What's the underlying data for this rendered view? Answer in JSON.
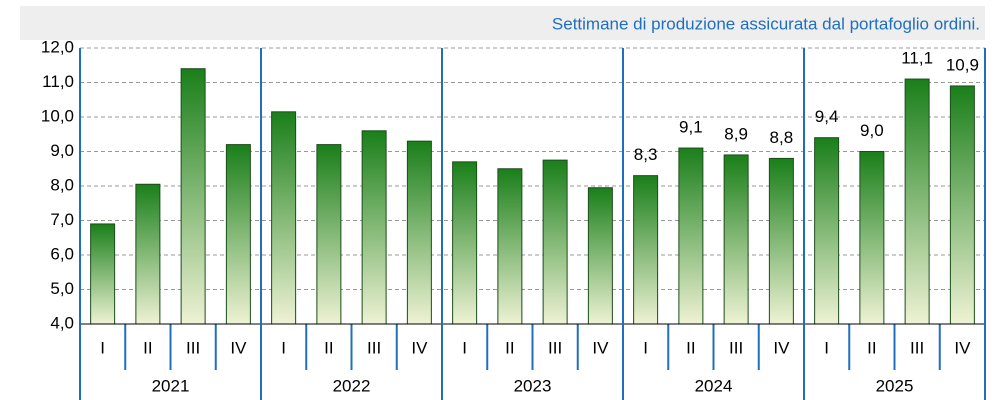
{
  "chart_data": {
    "type": "bar",
    "title": "Settimane di produzione assicurata dal portafoglio ordini.",
    "categories": [
      "I",
      "II",
      "III",
      "IV",
      "I",
      "II",
      "III",
      "IV",
      "I",
      "II",
      "III",
      "IV",
      "I",
      "II",
      "III",
      "IV",
      "I",
      "II",
      "III",
      "IV"
    ],
    "groups": [
      "2021",
      "2022",
      "2023",
      "2024",
      "2025"
    ],
    "values": [
      6.9,
      8.05,
      11.4,
      9.2,
      10.15,
      9.2,
      9.6,
      9.3,
      8.7,
      8.5,
      8.75,
      7.95,
      8.3,
      9.1,
      8.9,
      8.8,
      9.4,
      9.0,
      11.1,
      10.9
    ],
    "value_labels": [
      null,
      null,
      null,
      null,
      null,
      null,
      null,
      null,
      null,
      null,
      null,
      null,
      "8,3",
      "9,1",
      "8,9",
      "8,8",
      "9,4",
      "9,0",
      "11,1",
      "10,9"
    ],
    "color": "#1a7f1a",
    "ylim": [
      4,
      12
    ],
    "yticks": [
      {
        "value": 4,
        "label": "4,0"
      },
      {
        "value": 5,
        "label": "5,0"
      },
      {
        "value": 6,
        "label": "6,0"
      },
      {
        "value": 7,
        "label": "7,0"
      },
      {
        "value": 8,
        "label": "8,0"
      },
      {
        "value": 9,
        "label": "9,0"
      },
      {
        "value": 10,
        "label": "10,0"
      },
      {
        "value": 11,
        "label": "11,0"
      },
      {
        "value": 12,
        "label": "12,0"
      }
    ],
    "grid": true
  }
}
